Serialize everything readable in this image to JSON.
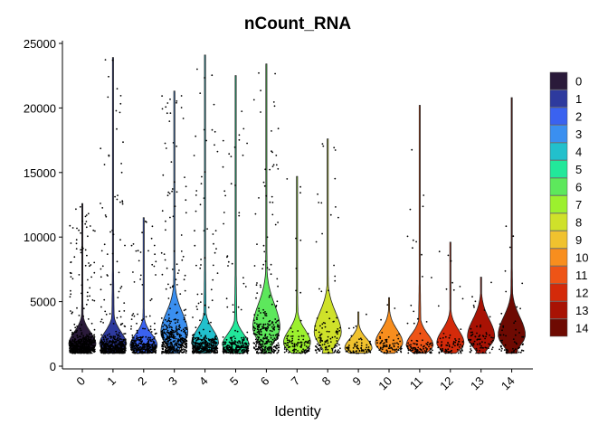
{
  "chart_data": {
    "type": "violin",
    "title": "nCount_RNA",
    "xlabel": "Identity",
    "ylabel": "",
    "ylim": [
      0,
      25000
    ],
    "yticks": [
      0,
      5000,
      10000,
      15000,
      20000,
      25000
    ],
    "ytick_labels": [
      "0",
      "5000",
      "10000",
      "15000",
      "20000",
      "25000"
    ],
    "categories": [
      "0",
      "1",
      "2",
      "3",
      "4",
      "5",
      "6",
      "7",
      "8",
      "9",
      "10",
      "11",
      "12",
      "13",
      "14"
    ],
    "legend_position": "right",
    "grid": false,
    "series": [
      {
        "name": "0",
        "color": "#2a1a3a",
        "min": 1000,
        "max": 12600,
        "mode": 1700,
        "n_points": 600
      },
      {
        "name": "1",
        "color": "#2e3a9e",
        "min": 1000,
        "max": 23900,
        "mode": 1700,
        "n_points": 520
      },
      {
        "name": "2",
        "color": "#3a62f0",
        "min": 1000,
        "max": 11500,
        "mode": 1600,
        "n_points": 360
      },
      {
        "name": "3",
        "color": "#3a8ff0",
        "min": 1000,
        "max": 21300,
        "mode": 2600,
        "n_points": 460
      },
      {
        "name": "4",
        "color": "#22c0cc",
        "min": 1000,
        "max": 24100,
        "mode": 1800,
        "n_points": 380
      },
      {
        "name": "5",
        "color": "#22e89a",
        "min": 1000,
        "max": 22500,
        "mode": 1600,
        "n_points": 260
      },
      {
        "name": "6",
        "color": "#5de85c",
        "min": 1000,
        "max": 23400,
        "mode": 3000,
        "n_points": 320
      },
      {
        "name": "7",
        "color": "#9cf02e",
        "min": 1000,
        "max": 14700,
        "mode": 1800,
        "n_points": 110
      },
      {
        "name": "8",
        "color": "#cfe12a",
        "min": 1000,
        "max": 17600,
        "mode": 2600,
        "n_points": 120
      },
      {
        "name": "9",
        "color": "#f0c22e",
        "min": 1000,
        "max": 4200,
        "mode": 1400,
        "n_points": 70
      },
      {
        "name": "10",
        "color": "#f88e1e",
        "min": 1000,
        "max": 5300,
        "mode": 1800,
        "n_points": 70
      },
      {
        "name": "11",
        "color": "#ee5416",
        "min": 1000,
        "max": 20200,
        "mode": 1600,
        "n_points": 100
      },
      {
        "name": "12",
        "color": "#d42a0a",
        "min": 1000,
        "max": 9600,
        "mode": 1800,
        "n_points": 80
      },
      {
        "name": "13",
        "color": "#a81204",
        "min": 1000,
        "max": 6900,
        "mode": 2300,
        "n_points": 75
      },
      {
        "name": "14",
        "color": "#6e0a02",
        "min": 1000,
        "max": 20800,
        "mode": 2400,
        "n_points": 60
      }
    ]
  }
}
